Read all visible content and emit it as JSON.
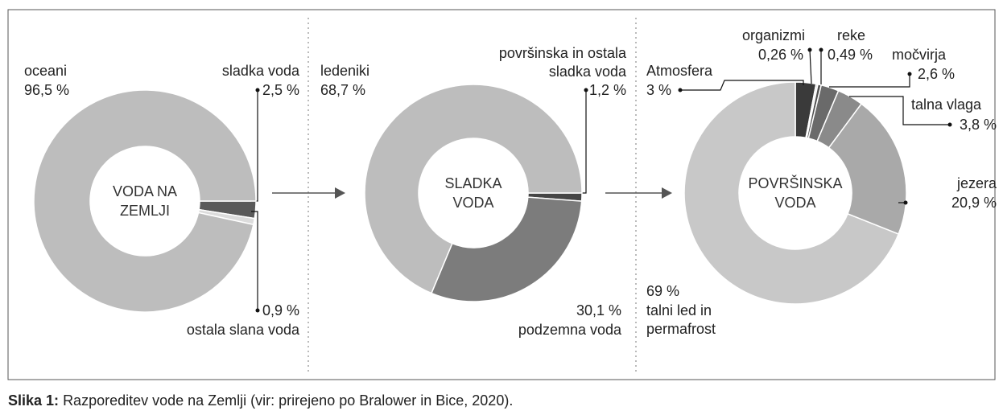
{
  "caption": {
    "label": "Slika 1:",
    "text": "Razporeditev vode na Zemlji (vir: prirejeno po Bralower in Bice, 2020)."
  },
  "chart_data": [
    {
      "type": "pie",
      "title": "VODA NA ZEMLJI",
      "categories": [
        "sladka voda",
        "ostala slana voda",
        "oceani"
      ],
      "values": [
        2.5,
        0.9,
        96.5
      ],
      "value_labels": [
        "2,5 %",
        "0,9 %",
        "96,5 %"
      ],
      "colors": [
        "#5a5a5a",
        "#dcdcdc",
        "#bdbdbd"
      ]
    },
    {
      "type": "pie",
      "title": "SLADKA VODA",
      "categories": [
        "površinska in ostala sladka voda",
        "podzemna voda",
        "ledeniki"
      ],
      "values": [
        1.2,
        30.1,
        68.7
      ],
      "value_labels": [
        "1,2 %",
        "30,1 %",
        "68,7 %"
      ],
      "colors": [
        "#454545",
        "#7c7c7c",
        "#bdbdbd"
      ]
    },
    {
      "type": "pie",
      "title": "POVRŠINSKA VODA",
      "categories": [
        "Atmosfera",
        "organizmi",
        "reke",
        "močvirja",
        "talna vlaga",
        "jezera",
        "talni led in permafrost"
      ],
      "values": [
        3,
        0.26,
        0.49,
        2.6,
        3.8,
        20.9,
        69
      ],
      "value_labels": [
        "3 %",
        "0,26 %",
        "0,49 %",
        "2,6 %",
        "3,8 %",
        "20,9 %",
        "69 %"
      ],
      "colors": [
        "#3a3a3a",
        "#e0e0e0",
        "#505050",
        "#6a6a6a",
        "#8a8a8a",
        "#a9a9a9",
        "#c8c8c8"
      ]
    }
  ]
}
